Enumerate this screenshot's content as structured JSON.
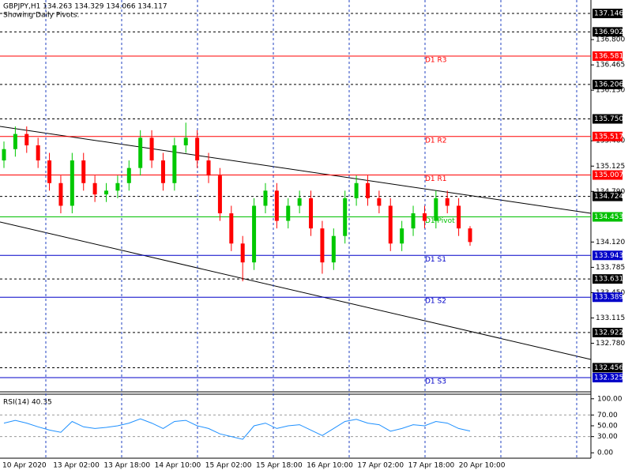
{
  "chart_data": {
    "type": "candlestick",
    "title": "GBPJPY,H1  134.263 134.329 134.066 134.117",
    "subtitle": "Showing Daily Pivots.",
    "ylim": [
      132.147,
      137.324
    ],
    "yticks": [
      {
        "value": 136.8,
        "label": "136.800"
      },
      {
        "value": 136.465,
        "label": "136.465"
      },
      {
        "value": 136.13,
        "label": "136.130"
      },
      {
        "value": 135.46,
        "label": "135.460"
      },
      {
        "value": 135.125,
        "label": "135.125"
      },
      {
        "value": 134.79,
        "label": "134.790"
      },
      {
        "value": 134.12,
        "label": "134.120"
      },
      {
        "value": 133.785,
        "label": "133.785"
      },
      {
        "value": 133.45,
        "label": "133.450"
      },
      {
        "value": 133.115,
        "label": "133.115"
      },
      {
        "value": 132.78,
        "label": "132.780"
      }
    ],
    "price_levels": [
      137.146,
      136.902,
      136.206,
      {
        "value": 135.75,
        "label": "135.750"
      },
      134.724,
      133.631,
      132.922,
      132.456
    ],
    "pivots": [
      {
        "name": "D1 R3",
        "value": 136.581,
        "color": "#ff0000"
      },
      {
        "name": "D1 R2",
        "value": 135.517,
        "color": "#ff0000"
      },
      {
        "name": "D1 R1",
        "value": 135.007,
        "color": "#ff0000"
      },
      {
        "name": "D1 Pivot",
        "value": 134.453,
        "color": "#00c000"
      },
      {
        "name": "D1 S1",
        "value": 133.943,
        "color": "#0000c8"
      },
      {
        "name": "D1 S2",
        "value": 133.389,
        "color": "#0000c8"
      },
      {
        "name": "D1 S3",
        "value": 132.325,
        "color": "#0000c8"
      }
    ],
    "up_color": "#00c800",
    "down_color": "#ff0000",
    "open": [
      135.2,
      135.35,
      135.55,
      135.4,
      135.2,
      134.9,
      134.6,
      135.2,
      134.9,
      134.75,
      134.8,
      134.9,
      135.1,
      135.5,
      135.2,
      134.9,
      135.4,
      135.5,
      135.2,
      135.0,
      134.5,
      134.1,
      133.85,
      134.6,
      134.8,
      134.4,
      134.6,
      134.7,
      134.3,
      133.85,
      134.2,
      134.7,
      134.9,
      134.7,
      134.6,
      134.1,
      134.3,
      134.5,
      134.4,
      134.7,
      134.6,
      134.3
    ],
    "high": [
      135.45,
      135.65,
      135.65,
      135.5,
      135.3,
      135.0,
      135.3,
      135.3,
      135.0,
      134.9,
      135.0,
      135.2,
      135.6,
      135.6,
      135.3,
      135.5,
      135.7,
      135.6,
      135.3,
      135.1,
      134.6,
      134.2,
      134.7,
      134.9,
      134.9,
      134.7,
      134.8,
      134.8,
      134.4,
      134.3,
      134.8,
      135.0,
      135.0,
      134.8,
      134.7,
      134.4,
      134.6,
      134.6,
      134.8,
      134.8,
      134.7,
      134.33
    ],
    "low": [
      135.1,
      135.25,
      135.3,
      135.1,
      134.8,
      134.5,
      134.5,
      134.8,
      134.65,
      134.65,
      134.7,
      134.8,
      135.0,
      135.1,
      134.8,
      134.8,
      135.3,
      135.1,
      134.9,
      134.4,
      134.0,
      133.6,
      133.75,
      134.5,
      134.3,
      134.3,
      134.5,
      134.2,
      133.7,
      133.75,
      134.1,
      134.6,
      134.6,
      134.5,
      134.0,
      134.0,
      134.2,
      134.3,
      134.3,
      134.5,
      134.2,
      134.07
    ],
    "close": [
      135.35,
      135.55,
      135.4,
      135.2,
      134.9,
      134.6,
      135.2,
      134.9,
      134.75,
      134.8,
      134.9,
      135.1,
      135.5,
      135.2,
      134.9,
      135.4,
      135.5,
      135.2,
      135.0,
      134.5,
      134.1,
      133.85,
      134.6,
      134.8,
      134.4,
      134.6,
      134.7,
      134.3,
      133.85,
      134.2,
      134.7,
      134.9,
      134.7,
      134.6,
      134.1,
      134.3,
      134.5,
      134.4,
      134.7,
      134.6,
      134.3,
      134.12
    ],
    "time_labels": [
      "10 Apr 2020",
      "13 Apr 02:00",
      "13 Apr 18:00",
      "14 Apr 10:00",
      "15 Apr 02:00",
      "15 Apr 18:00",
      "16 Apr 10:00",
      "17 Apr 02:00",
      "17 Apr 18:00",
      "20 Apr 10:00"
    ],
    "rsi": {
      "label": "RSI(14) 40.35",
      "color": "#1e90ff",
      "ylim": [
        -10,
        107
      ],
      "yticks": [
        {
          "value": 100,
          "label": "100.00"
        },
        {
          "value": 70,
          "label": "70.00"
        },
        {
          "value": 50,
          "label": "50.00"
        },
        {
          "value": 30,
          "label": "30.00"
        },
        {
          "value": 0,
          "label": "0.00"
        }
      ],
      "levels": [
        70,
        30
      ],
      "values": [
        55,
        60,
        55,
        48,
        42,
        38,
        58,
        48,
        45,
        47,
        50,
        55,
        63,
        55,
        45,
        58,
        60,
        50,
        45,
        35,
        30,
        25,
        50,
        55,
        45,
        50,
        52,
        42,
        32,
        45,
        58,
        62,
        55,
        52,
        40,
        45,
        52,
        50,
        58,
        55,
        45,
        40.35
      ]
    }
  }
}
